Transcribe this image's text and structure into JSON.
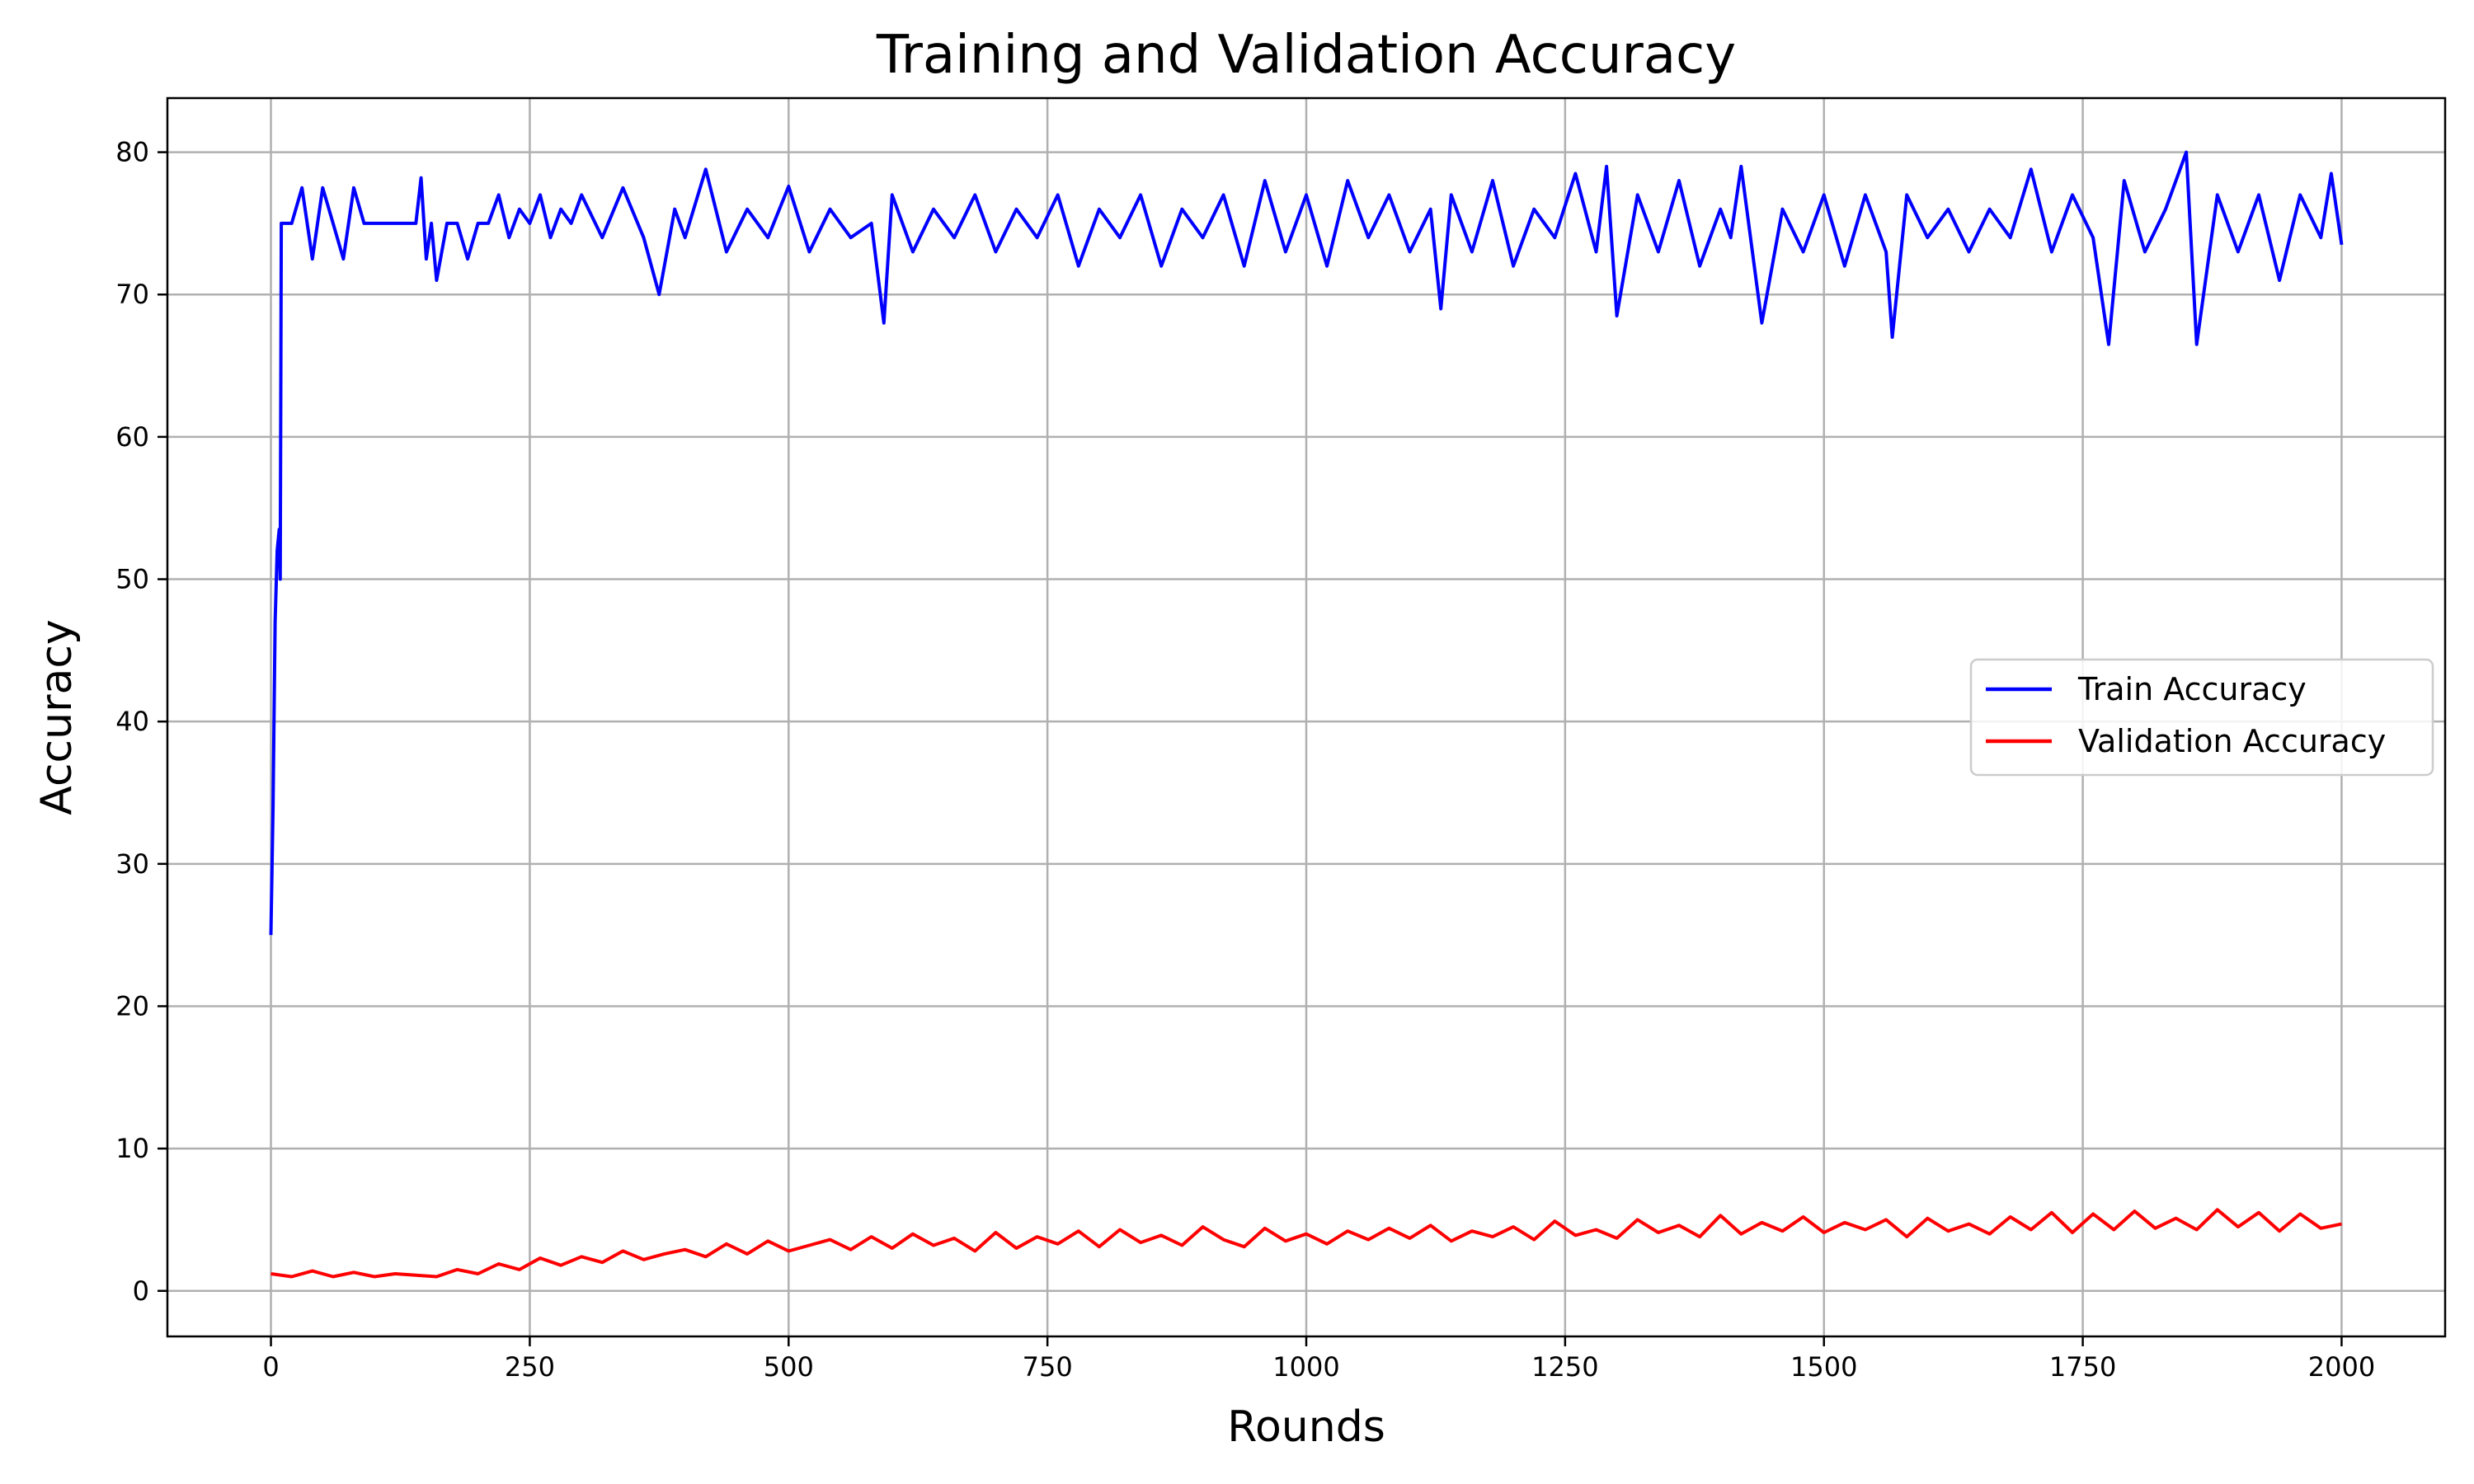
{
  "chart_data": {
    "type": "line",
    "title": "Training and Validation Accuracy",
    "xlabel": "Rounds",
    "ylabel": "Accuracy",
    "xlim": [
      -100,
      2100
    ],
    "ylim": [
      -3.2,
      83.8
    ],
    "xticks": [
      0,
      250,
      500,
      750,
      1000,
      1250,
      1500,
      1750,
      2000
    ],
    "yticks": [
      0,
      10,
      20,
      30,
      40,
      50,
      60,
      70,
      80
    ],
    "grid": true,
    "legend_position": "center-right",
    "series": [
      {
        "name": "Train Accuracy",
        "color": "#0000ff",
        "x": [
          0,
          2,
          4,
          6,
          8,
          9,
          10,
          12,
          15,
          20,
          30,
          40,
          50,
          60,
          70,
          80,
          90,
          100,
          110,
          120,
          130,
          140,
          145,
          150,
          155,
          160,
          170,
          180,
          190,
          200,
          210,
          220,
          230,
          240,
          250,
          260,
          270,
          280,
          290,
          300,
          320,
          340,
          360,
          375,
          390,
          400,
          420,
          440,
          460,
          480,
          500,
          520,
          540,
          560,
          580,
          592,
          600,
          620,
          640,
          660,
          680,
          700,
          720,
          740,
          760,
          780,
          800,
          820,
          840,
          860,
          880,
          900,
          920,
          940,
          960,
          980,
          1000,
          1020,
          1040,
          1060,
          1080,
          1100,
          1120,
          1130,
          1140,
          1160,
          1180,
          1200,
          1220,
          1240,
          1260,
          1280,
          1290,
          1300,
          1320,
          1340,
          1360,
          1380,
          1400,
          1410,
          1420,
          1440,
          1460,
          1480,
          1500,
          1520,
          1540,
          1560,
          1566,
          1580,
          1600,
          1620,
          1640,
          1660,
          1680,
          1700,
          1720,
          1740,
          1760,
          1775,
          1790,
          1810,
          1830,
          1850,
          1860,
          1880,
          1900,
          1920,
          1940,
          1960,
          1980,
          1990,
          2000
        ],
        "y": [
          25,
          34,
          47,
          52,
          53.5,
          50,
          75,
          75,
          75,
          75,
          77.5,
          72.5,
          77.5,
          75,
          72.5,
          77.5,
          75,
          75,
          75,
          75,
          75,
          75,
          78.2,
          72.5,
          75,
          71,
          75,
          75,
          72.5,
          75,
          75,
          77,
          74,
          76,
          75,
          77,
          74,
          76,
          75,
          77,
          74,
          77.5,
          74,
          70,
          76,
          74,
          78.8,
          73,
          76,
          74,
          77.6,
          73,
          76,
          74,
          75,
          68,
          77,
          73,
          76,
          74,
          77,
          73,
          76,
          74,
          77,
          72,
          76,
          74,
          77,
          72,
          76,
          74,
          77,
          72,
          78,
          73,
          77,
          72,
          78,
          74,
          77,
          73,
          76,
          69,
          77,
          73,
          78,
          72,
          76,
          74,
          78.5,
          73,
          79,
          68.5,
          77,
          73,
          78,
          72,
          76,
          74,
          79,
          68,
          76,
          73,
          77,
          72,
          77,
          73,
          67,
          77,
          74,
          76,
          73,
          76,
          74,
          78.8,
          73,
          77,
          74,
          66.5,
          78,
          73,
          76,
          80,
          66.5,
          77,
          73,
          77,
          71,
          77,
          74,
          78.5,
          73.5
        ]
      },
      {
        "name": "Validation Accuracy",
        "color": "#ff0000",
        "x": [
          0,
          20,
          40,
          60,
          80,
          100,
          120,
          140,
          160,
          180,
          200,
          220,
          240,
          260,
          280,
          300,
          320,
          340,
          360,
          380,
          400,
          420,
          440,
          460,
          480,
          500,
          520,
          540,
          560,
          580,
          600,
          620,
          640,
          660,
          680,
          700,
          720,
          740,
          760,
          780,
          800,
          820,
          840,
          860,
          880,
          900,
          920,
          940,
          960,
          980,
          1000,
          1020,
          1040,
          1060,
          1080,
          1100,
          1120,
          1140,
          1160,
          1180,
          1200,
          1220,
          1240,
          1260,
          1280,
          1300,
          1320,
          1340,
          1360,
          1380,
          1400,
          1420,
          1440,
          1460,
          1480,
          1500,
          1520,
          1540,
          1560,
          1580,
          1600,
          1620,
          1640,
          1660,
          1680,
          1700,
          1720,
          1740,
          1760,
          1780,
          1800,
          1820,
          1840,
          1860,
          1880,
          1900,
          1920,
          1940,
          1960,
          1980,
          2000
        ],
        "y": [
          1.2,
          1.0,
          1.4,
          1.0,
          1.3,
          1.0,
          1.2,
          1.1,
          1.0,
          1.5,
          1.2,
          1.9,
          1.5,
          2.3,
          1.8,
          2.4,
          2.0,
          2.8,
          2.2,
          2.6,
          2.9,
          2.4,
          3.3,
          2.6,
          3.5,
          2.8,
          3.2,
          3.6,
          2.9,
          3.8,
          3.0,
          4.0,
          3.2,
          3.7,
          2.8,
          4.1,
          3.0,
          3.8,
          3.3,
          4.2,
          3.1,
          4.3,
          3.4,
          3.9,
          3.2,
          4.5,
          3.6,
          3.1,
          4.4,
          3.5,
          4.0,
          3.3,
          4.2,
          3.6,
          4.4,
          3.7,
          4.6,
          3.5,
          4.2,
          3.8,
          4.5,
          3.6,
          4.9,
          3.9,
          4.3,
          3.7,
          5.0,
          4.1,
          4.6,
          3.8,
          5.3,
          4.0,
          4.8,
          4.2,
          5.2,
          4.1,
          4.8,
          4.3,
          5.0,
          3.8,
          5.1,
          4.2,
          4.7,
          4.0,
          5.2,
          4.3,
          5.5,
          4.1,
          5.4,
          4.3,
          5.6,
          4.4,
          5.1,
          4.3,
          5.7,
          4.5,
          5.5,
          4.2,
          5.4,
          4.4,
          4.7
        ]
      }
    ]
  }
}
